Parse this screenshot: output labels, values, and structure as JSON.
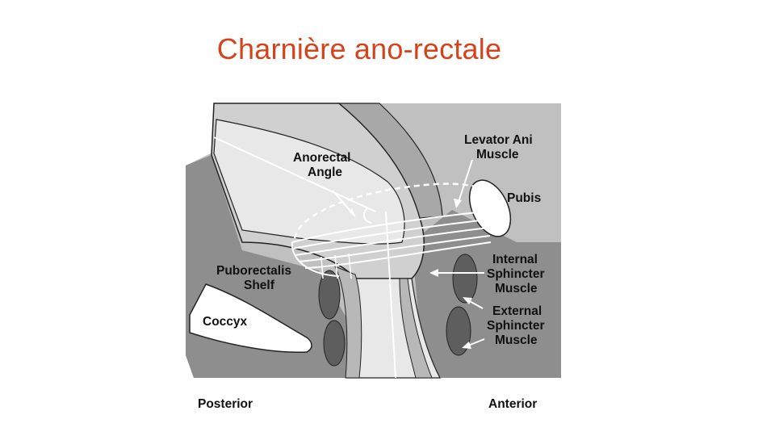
{
  "slide": {
    "title": "Charnière ano-rectale"
  },
  "diagram": {
    "labels": {
      "anorectal_angle_1": "Anorectal",
      "anorectal_angle_2": "Angle",
      "levator_ani_1": "Levator Ani",
      "levator_ani_2": "Muscle",
      "pubis": "Pubis",
      "puborectalis_1": "Puborectalis",
      "puborectalis_2": "Shelf",
      "internal_sphincter_1": "Internal",
      "internal_sphincter_2": "Sphincter",
      "internal_sphincter_3": "Muscle",
      "external_sphincter_1": "External",
      "external_sphincter_2": "Sphincter",
      "external_sphincter_3": "Muscle",
      "coccyx": "Coccyx",
      "posterior": "Posterior",
      "anterior": "Anterior"
    },
    "colors": {
      "title": "#d4441c",
      "dark_tissue": "#8e8e8e",
      "mid_tissue": "#b4b4b4",
      "light_tissue": "#d2d2d2",
      "lumen": "#e6e6e6",
      "sphincter": "#5e5e5e",
      "outline": "#222222"
    }
  }
}
